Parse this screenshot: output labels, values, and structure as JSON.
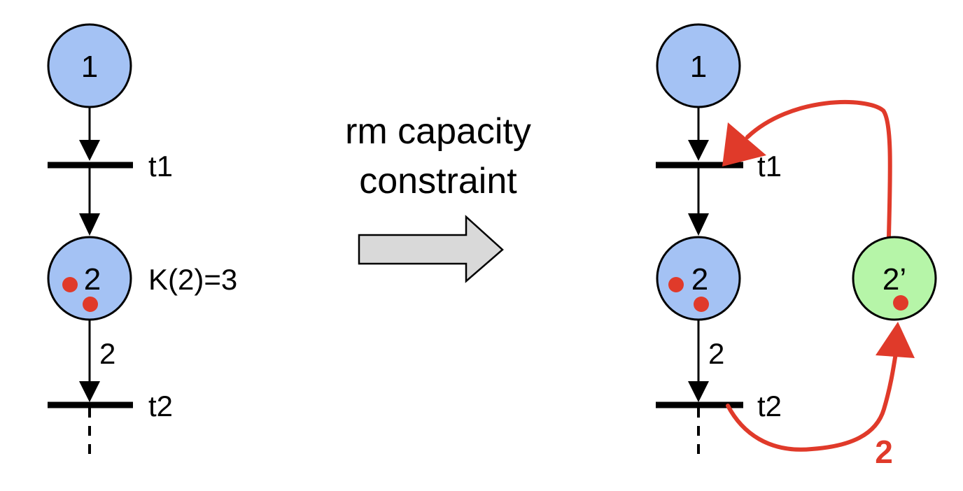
{
  "left_net": {
    "place1_label": "1",
    "transition1_label": "t1",
    "place2_label": "2",
    "capacity_label": "K(2)=3",
    "arc_weight": "2",
    "transition2_label": "t2",
    "place2_tokens": 2
  },
  "operation": {
    "line1": "rm capacity",
    "line2": "constraint"
  },
  "right_net": {
    "place1_label": "1",
    "transition1_label": "t1",
    "place2_label": "2",
    "arc_weight": "2",
    "transition2_label": "t2",
    "complement_place_label": "2’",
    "complement_arc_weight": "2",
    "place2_tokens": 2,
    "complement_tokens": 1
  },
  "colors": {
    "place_fill": "#a4c2f4",
    "complement_fill": "#b6f5a8",
    "token": "#e03a2a",
    "added_arc": "#e03a2a",
    "arrow_fill": "#d9d9d9"
  }
}
